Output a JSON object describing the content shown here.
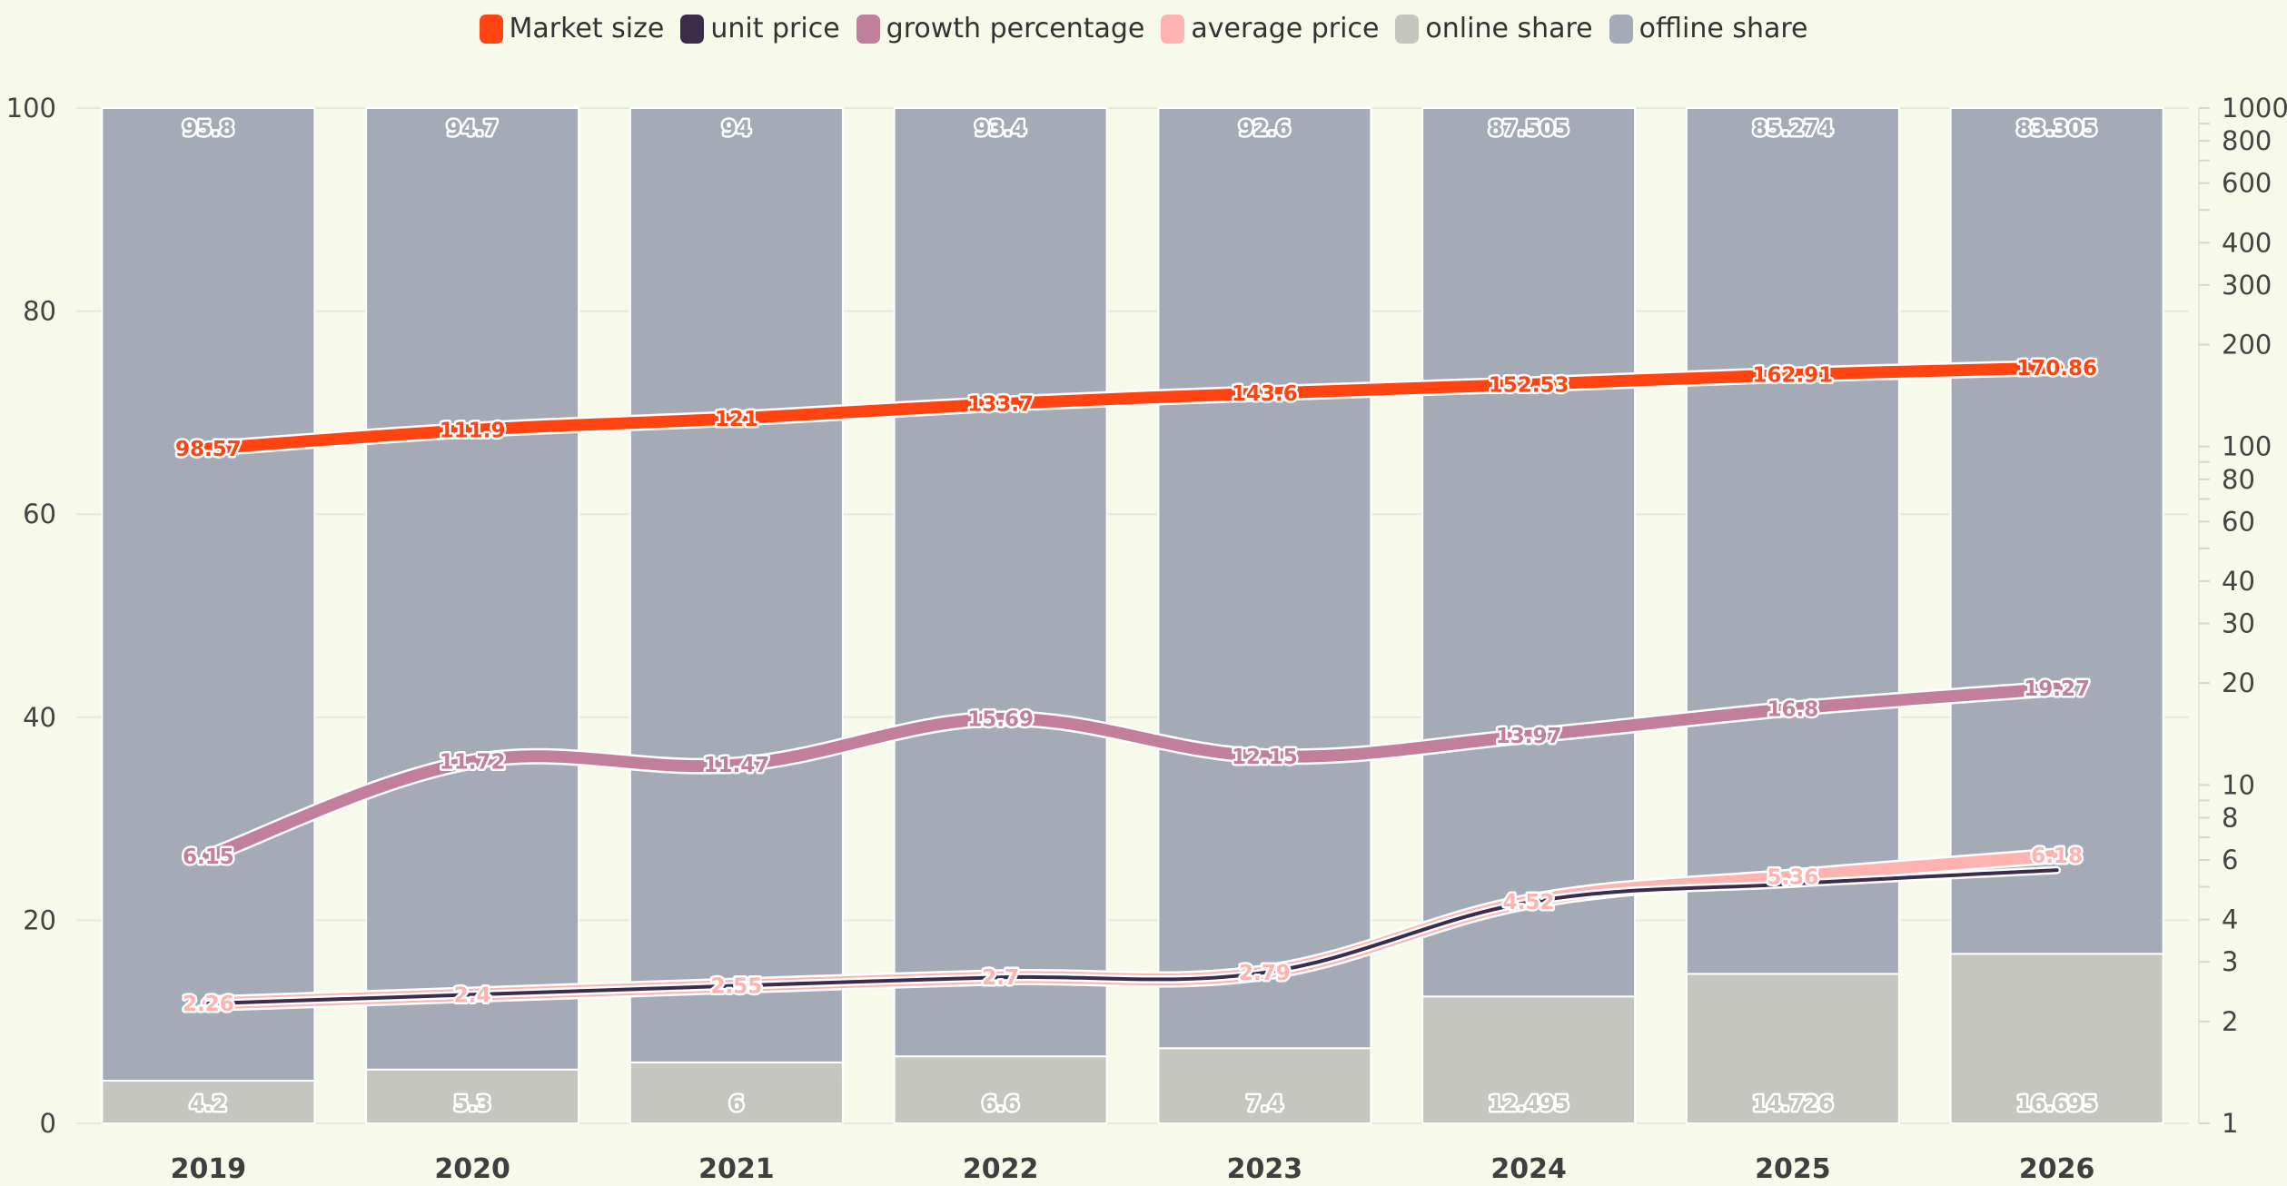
{
  "chart_data": {
    "type": "bar",
    "categories": [
      "2019",
      "2020",
      "2021",
      "2022",
      "2023",
      "2024",
      "2025",
      "2026"
    ],
    "y_left": {
      "range": [
        0,
        100
      ],
      "ticks": [
        "0",
        "20",
        "40",
        "60",
        "80",
        "100"
      ]
    },
    "y_right": {
      "scale": "log",
      "range": [
        1,
        1000
      ],
      "ticks": [
        "1",
        "2",
        "3",
        "4",
        "6",
        "8",
        "10",
        "20",
        "30",
        "40",
        "60",
        "80",
        "100",
        "200",
        "300",
        "400",
        "600",
        "800",
        "1000"
      ]
    },
    "grid": true,
    "legend_position": "top-center",
    "series": [
      {
        "name": "Market size",
        "type": "line",
        "axis": "right",
        "color": "#ff4412",
        "values": [
          98.57,
          111.9,
          121,
          133.7,
          143.6,
          152.53,
          162.91,
          170.86
        ],
        "labels": [
          "98.57",
          "111.9",
          "121",
          "133.7",
          "143.6",
          "152.53",
          "162.91",
          "170.86"
        ]
      },
      {
        "name": "unit price",
        "type": "line",
        "axis": "right",
        "color": "#3b2c4c",
        "values": [
          2.26,
          2.4,
          2.55,
          2.7,
          2.79,
          4.5,
          5.1,
          5.6
        ],
        "labels": [
          "",
          "",
          "",
          "",
          "",
          "",
          "",
          ""
        ]
      },
      {
        "name": "growth percentage",
        "type": "line",
        "axis": "right",
        "color": "#c17f9b",
        "values": [
          6.15,
          11.72,
          11.47,
          15.69,
          12.15,
          13.97,
          16.8,
          19.27
        ],
        "labels": [
          "6.15",
          "11.72",
          "11.47",
          "15.69",
          "12.15",
          "13.97",
          "16.8",
          "19.27"
        ]
      },
      {
        "name": "average price",
        "type": "line",
        "axis": "right",
        "color": "#ffb3b1",
        "values": [
          2.26,
          2.4,
          2.55,
          2.7,
          2.79,
          4.52,
          5.36,
          6.18
        ],
        "labels": [
          "2.26",
          "2.4",
          "2.55",
          "2.7",
          "2.79",
          "4.52",
          "5.36",
          "6.18"
        ]
      },
      {
        "name": "online share",
        "type": "bar",
        "axis": "left",
        "stack": 0,
        "color": "#c5c6c0",
        "values": [
          4.2,
          5.3,
          6,
          6.6,
          7.4,
          12.495,
          14.726,
          16.695
        ],
        "labels": [
          "4.2",
          "5.3",
          "6",
          "6.6",
          "7.4",
          "12.495",
          "14.726",
          "16.695"
        ]
      },
      {
        "name": "offline share",
        "type": "bar",
        "axis": "left",
        "stack": 1,
        "color": "#a4aab6",
        "values": [
          95.8,
          94.7,
          94,
          93.4,
          92.6,
          87.505,
          85.274,
          83.305
        ],
        "labels": [
          "95.8",
          "94.7",
          "94",
          "93.4",
          "92.6",
          "87.505",
          "85.274",
          "83.305"
        ]
      }
    ]
  }
}
